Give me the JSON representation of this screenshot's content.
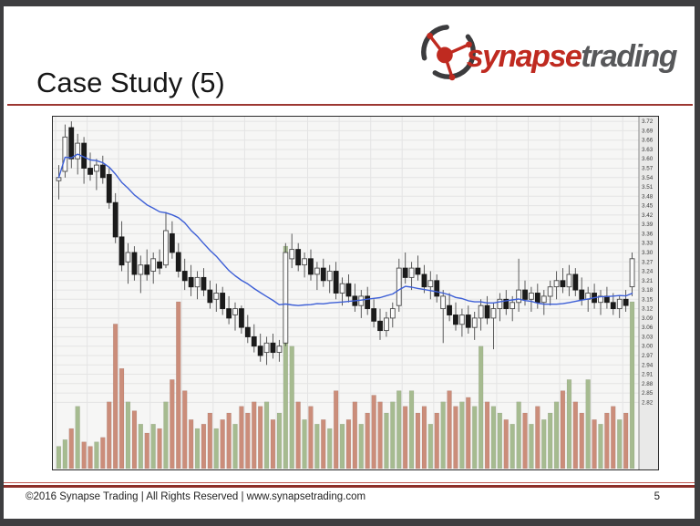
{
  "slide": {
    "title": "Case Study (5)",
    "footer": "©2016 Synapse Trading | All Rights Reserved | www.synapsetrading.com",
    "page_number": "5",
    "accent_color": "#9c3732"
  },
  "logo": {
    "brand_primary": "synapse",
    "brand_secondary": "trading",
    "primary_color": "#bf2a20",
    "secondary_color": "#57585a"
  },
  "chart_data": {
    "type": "candlestick+volume",
    "title": "",
    "xlabel": "",
    "ylabel": "",
    "legend": [],
    "grid": true,
    "price_axis": {
      "side": "right",
      "top_price": 3.735,
      "bottom_price": 2.605,
      "tick_step": 0.03,
      "ticks": [
        "3.72",
        "3.69",
        "3.66",
        "3.63",
        "3.60",
        "3.57",
        "3.54",
        "3.51",
        "3.48",
        "3.45",
        "3.42",
        "3.39",
        "3.36",
        "3.33",
        "3.30",
        "3.27",
        "3.24",
        "3.21",
        "3.18",
        "3.15",
        "3.12",
        "3.09",
        "3.06",
        "3.03",
        "3.00",
        "2.97",
        "2.94",
        "2.91",
        "2.88",
        "2.85",
        "2.82"
      ]
    },
    "moving_average": {
      "window": 20,
      "color": "#3d5fd6"
    },
    "colors": {
      "up_body": "#fbfbfb",
      "up_border": "#4a4a4a",
      "down_body": "#1b1b1b",
      "wick": "#4a4a4a",
      "vol_up": "#a6bb90",
      "vol_down": "#cb8d7a",
      "plot_bg": "#f6f6f5",
      "axis_bg": "#e9e9e8",
      "grid": "#e4e4e4",
      "border": "#2b2b2b"
    },
    "candles_format": [
      "open",
      "high",
      "low",
      "close",
      "volume_rel"
    ],
    "candles": [
      [
        3.53,
        3.58,
        3.47,
        3.54,
        0.1
      ],
      [
        3.56,
        3.71,
        3.54,
        3.67,
        0.13
      ],
      [
        3.7,
        3.72,
        3.57,
        3.6,
        0.18
      ],
      [
        3.6,
        3.68,
        3.55,
        3.65,
        0.28
      ],
      [
        3.65,
        3.67,
        3.52,
        3.57,
        0.12
      ],
      [
        3.57,
        3.62,
        3.53,
        3.55,
        0.1
      ],
      [
        3.56,
        3.6,
        3.5,
        3.58,
        0.12
      ],
      [
        3.58,
        3.61,
        3.52,
        3.54,
        0.14
      ],
      [
        3.55,
        3.57,
        3.44,
        3.46,
        0.3
      ],
      [
        3.46,
        3.49,
        3.33,
        3.35,
        0.65
      ],
      [
        3.35,
        3.4,
        3.24,
        3.26,
        0.45
      ],
      [
        3.27,
        3.33,
        3.2,
        3.3,
        0.3
      ],
      [
        3.3,
        3.32,
        3.21,
        3.23,
        0.26
      ],
      [
        3.23,
        3.29,
        3.17,
        3.26,
        0.2
      ],
      [
        3.26,
        3.31,
        3.21,
        3.23,
        0.16
      ],
      [
        3.24,
        3.3,
        3.2,
        3.28,
        0.2
      ],
      [
        3.27,
        3.31,
        3.23,
        3.25,
        0.18
      ],
      [
        3.26,
        3.43,
        3.25,
        3.37,
        0.3
      ],
      [
        3.36,
        3.4,
        3.28,
        3.3,
        0.4
      ],
      [
        3.3,
        3.33,
        3.22,
        3.24,
        0.75
      ],
      [
        3.24,
        3.28,
        3.18,
        3.21,
        0.35
      ],
      [
        3.22,
        3.26,
        3.16,
        3.19,
        0.22
      ],
      [
        3.19,
        3.24,
        3.15,
        3.22,
        0.18
      ],
      [
        3.22,
        3.25,
        3.16,
        3.18,
        0.2
      ],
      [
        3.18,
        3.21,
        3.12,
        3.14,
        0.25
      ],
      [
        3.15,
        3.2,
        3.11,
        3.17,
        0.18
      ],
      [
        3.17,
        3.19,
        3.1,
        3.12,
        0.22
      ],
      [
        3.12,
        3.16,
        3.07,
        3.09,
        0.25
      ],
      [
        3.1,
        3.14,
        3.05,
        3.12,
        0.2
      ],
      [
        3.12,
        3.13,
        3.04,
        3.06,
        0.28
      ],
      [
        3.06,
        3.1,
        3.01,
        3.03,
        0.25
      ],
      [
        3.03,
        3.07,
        2.98,
        3.0,
        0.3
      ],
      [
        3.0,
        3.04,
        2.95,
        2.97,
        0.28
      ],
      [
        2.98,
        3.03,
        2.94,
        3.01,
        0.3
      ],
      [
        3.01,
        3.04,
        2.96,
        2.98,
        0.22
      ],
      [
        2.98,
        3.02,
        2.95,
        3.0,
        0.25
      ],
      [
        3.01,
        3.33,
        3.0,
        3.3,
        1.0
      ],
      [
        3.28,
        3.36,
        3.25,
        3.31,
        0.55
      ],
      [
        3.31,
        3.33,
        3.24,
        3.26,
        0.3
      ],
      [
        3.26,
        3.3,
        3.22,
        3.28,
        0.22
      ],
      [
        3.28,
        3.31,
        3.21,
        3.23,
        0.28
      ],
      [
        3.23,
        3.27,
        3.18,
        3.25,
        0.2
      ],
      [
        3.25,
        3.28,
        3.19,
        3.21,
        0.22
      ],
      [
        3.21,
        3.26,
        3.17,
        3.24,
        0.18
      ],
      [
        3.24,
        3.27,
        3.15,
        3.17,
        0.35
      ],
      [
        3.17,
        3.22,
        3.13,
        3.2,
        0.2
      ],
      [
        3.2,
        3.23,
        3.14,
        3.16,
        0.22
      ],
      [
        3.16,
        3.2,
        3.11,
        3.13,
        0.3
      ],
      [
        3.13,
        3.18,
        3.09,
        3.16,
        0.2
      ],
      [
        3.16,
        3.19,
        3.1,
        3.12,
        0.25
      ],
      [
        3.12,
        3.15,
        3.06,
        3.08,
        0.33
      ],
      [
        3.08,
        3.12,
        3.02,
        3.05,
        0.3
      ],
      [
        3.05,
        3.11,
        3.03,
        3.09,
        0.25
      ],
      [
        3.09,
        3.14,
        3.06,
        3.12,
        0.3
      ],
      [
        3.13,
        3.28,
        3.11,
        3.25,
        0.35
      ],
      [
        3.25,
        3.3,
        3.2,
        3.22,
        0.28
      ],
      [
        3.22,
        3.27,
        3.18,
        3.25,
        0.35
      ],
      [
        3.25,
        3.29,
        3.21,
        3.23,
        0.25
      ],
      [
        3.23,
        3.26,
        3.17,
        3.19,
        0.28
      ],
      [
        3.19,
        3.24,
        3.15,
        3.21,
        0.2
      ],
      [
        3.21,
        3.23,
        3.14,
        3.16,
        0.25
      ],
      [
        3.12,
        3.18,
        3.01,
        3.16,
        0.3
      ],
      [
        3.13,
        3.17,
        3.08,
        3.1,
        0.35
      ],
      [
        3.1,
        3.14,
        3.05,
        3.07,
        0.28
      ],
      [
        3.07,
        3.12,
        3.03,
        3.1,
        0.3
      ],
      [
        3.1,
        3.13,
        3.04,
        3.06,
        0.32
      ],
      [
        3.06,
        3.11,
        3.02,
        3.09,
        0.28
      ],
      [
        3.09,
        3.15,
        3.05,
        3.13,
        0.55
      ],
      [
        3.13,
        3.16,
        3.07,
        3.09,
        0.3
      ],
      [
        3.09,
        3.14,
        2.99,
        3.12,
        0.28
      ],
      [
        3.12,
        3.17,
        3.08,
        3.15,
        0.25
      ],
      [
        3.15,
        3.18,
        3.1,
        3.12,
        0.22
      ],
      [
        3.12,
        3.16,
        3.08,
        3.14,
        0.2
      ],
      [
        3.14,
        3.28,
        3.11,
        3.18,
        0.3
      ],
      [
        3.18,
        3.21,
        3.13,
        3.15,
        0.25
      ],
      [
        3.15,
        3.19,
        3.11,
        3.17,
        0.2
      ],
      [
        3.17,
        3.2,
        3.12,
        3.14,
        0.28
      ],
      [
        3.14,
        3.18,
        3.1,
        3.16,
        0.22
      ],
      [
        3.16,
        3.21,
        3.13,
        3.19,
        0.25
      ],
      [
        3.19,
        3.24,
        3.15,
        3.21,
        0.3
      ],
      [
        3.21,
        3.25,
        3.17,
        3.19,
        0.35
      ],
      [
        3.19,
        3.26,
        3.16,
        3.23,
        0.4
      ],
      [
        3.23,
        3.25,
        3.16,
        3.18,
        0.3
      ],
      [
        3.18,
        3.22,
        3.13,
        3.15,
        0.25
      ],
      [
        3.15,
        3.19,
        3.11,
        3.17,
        0.4
      ],
      [
        3.17,
        3.2,
        3.12,
        3.14,
        0.22
      ],
      [
        3.14,
        3.18,
        3.1,
        3.16,
        0.2
      ],
      [
        3.16,
        3.19,
        3.12,
        3.14,
        0.25
      ],
      [
        3.14,
        3.17,
        3.1,
        3.12,
        0.28
      ],
      [
        3.12,
        3.16,
        3.09,
        3.15,
        0.22
      ],
      [
        3.15,
        3.18,
        3.11,
        3.13,
        0.25
      ],
      [
        3.19,
        3.3,
        3.16,
        3.28,
        0.75
      ]
    ]
  }
}
